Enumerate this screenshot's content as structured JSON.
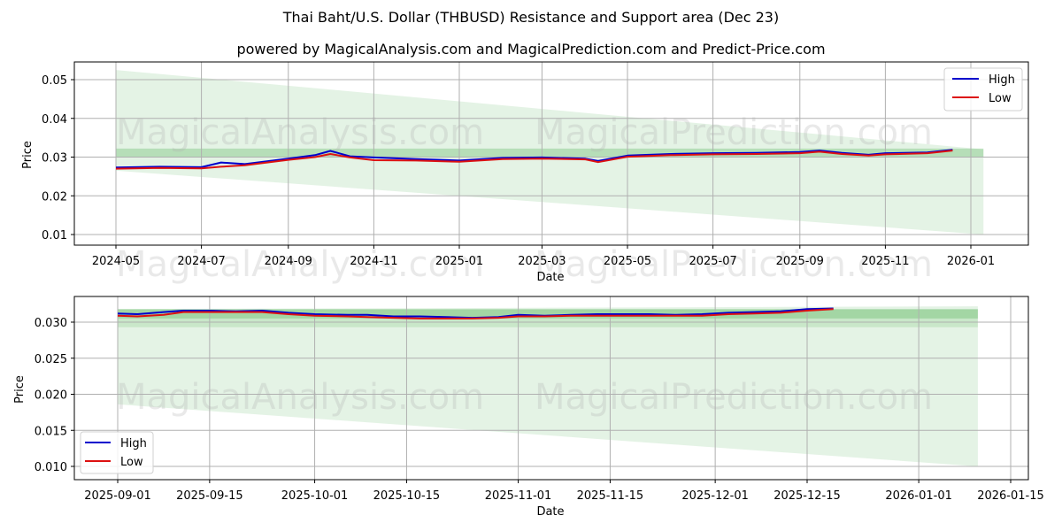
{
  "title": "Thai Baht/U.S. Dollar (THBUSD) Resistance and Support area (Dec 23)",
  "subtitle": "powered by MagicalAnalysis.com and MagicalPrediction.com and Predict-Price.com",
  "watermarks": [
    "MagicalAnalysis.com",
    "MagicalPrediction.com"
  ],
  "colors": {
    "high": "#0000cc",
    "low": "#dd1111",
    "band_light": "#c8e6c9",
    "band_dark": "#8fc98f",
    "grid": "#b0b0b0"
  },
  "legend": {
    "high": "High",
    "low": "Low"
  },
  "chart_data": [
    {
      "type": "line",
      "title": "Thai Baht/U.S. Dollar (THBUSD) Resistance and Support area (Dec 23)",
      "xlabel": "Date",
      "ylabel": "Price",
      "x_ticks": [
        "2024-05",
        "2024-07",
        "2024-09",
        "2024-11",
        "2025-01",
        "2025-03",
        "2025-05",
        "2025-07",
        "2025-09",
        "2025-11",
        "2026-01"
      ],
      "y_ticks": [
        "0.01",
        "0.02",
        "0.03",
        "0.04",
        "0.05"
      ],
      "ylim": [
        0.0075,
        0.0545
      ],
      "grid": true,
      "legend_position": "upper right",
      "x": [
        "2024-05-01",
        "2024-06-01",
        "2024-07-01",
        "2024-07-15",
        "2024-08-01",
        "2024-09-01",
        "2024-09-20",
        "2024-10-01",
        "2024-10-15",
        "2024-11-01",
        "2024-12-01",
        "2025-01-01",
        "2025-02-01",
        "2025-03-01",
        "2025-04-01",
        "2025-04-10",
        "2025-05-01",
        "2025-06-01",
        "2025-07-01",
        "2025-08-01",
        "2025-09-01",
        "2025-09-15",
        "2025-10-01",
        "2025-10-20",
        "2025-11-01",
        "2025-12-01",
        "2025-12-19"
      ],
      "series": [
        {
          "name": "High",
          "values": [
            0.0273,
            0.0275,
            0.0274,
            0.0286,
            0.0282,
            0.0296,
            0.0305,
            0.0316,
            0.0302,
            0.0299,
            0.0295,
            0.0291,
            0.0298,
            0.0299,
            0.0296,
            0.029,
            0.0304,
            0.0308,
            0.031,
            0.0311,
            0.0313,
            0.0317,
            0.0311,
            0.0306,
            0.031,
            0.0312,
            0.0319
          ]
        },
        {
          "name": "Low",
          "values": [
            0.027,
            0.0272,
            0.0271,
            0.0275,
            0.0279,
            0.0293,
            0.03,
            0.0308,
            0.0299,
            0.0292,
            0.0291,
            0.0288,
            0.0295,
            0.0296,
            0.0294,
            0.0287,
            0.0301,
            0.0305,
            0.0307,
            0.0308,
            0.031,
            0.0314,
            0.0308,
            0.0304,
            0.0307,
            0.031,
            0.0317
          ]
        }
      ],
      "bands": [
        {
          "name": "wide support/resistance area",
          "start": "2024-05-01",
          "end": "2026-01-10",
          "upper_start": 0.0525,
          "upper_end": 0.032,
          "lower_start": 0.0265,
          "lower_end": 0.01
        },
        {
          "name": "narrow area",
          "start": "2024-05-01",
          "end": "2026-01-10",
          "upper": 0.0322,
          "lower": 0.03
        }
      ]
    },
    {
      "type": "line",
      "xlabel": "Date",
      "ylabel": "Price",
      "x_ticks": [
        "2025-09-01",
        "2025-09-15",
        "2025-10-01",
        "2025-10-15",
        "2025-11-01",
        "2025-11-15",
        "2025-12-01",
        "2025-12-15",
        "2026-01-01",
        "2026-01-15"
      ],
      "y_ticks": [
        "0.010",
        "0.015",
        "0.020",
        "0.025",
        "0.030"
      ],
      "ylim": [
        0.0082,
        0.0335
      ],
      "grid": true,
      "legend_position": "lower left",
      "x": [
        "2025-09-01",
        "2025-09-04",
        "2025-09-08",
        "2025-09-11",
        "2025-09-15",
        "2025-09-19",
        "2025-09-23",
        "2025-09-27",
        "2025-10-01",
        "2025-10-06",
        "2025-10-09",
        "2025-10-13",
        "2025-10-17",
        "2025-10-21",
        "2025-10-25",
        "2025-10-29",
        "2025-11-01",
        "2025-11-05",
        "2025-11-09",
        "2025-11-13",
        "2025-11-17",
        "2025-11-21",
        "2025-11-25",
        "2025-11-29",
        "2025-12-03",
        "2025-12-07",
        "2025-12-11",
        "2025-12-15",
        "2025-12-19"
      ],
      "series": [
        {
          "name": "High",
          "values": [
            0.0312,
            0.0311,
            0.0314,
            0.0316,
            0.0316,
            0.0315,
            0.0316,
            0.0313,
            0.0311,
            0.031,
            0.031,
            0.0308,
            0.0308,
            0.0307,
            0.0306,
            0.0307,
            0.031,
            0.0309,
            0.031,
            0.0311,
            0.0311,
            0.0311,
            0.031,
            0.0311,
            0.0313,
            0.0314,
            0.0315,
            0.0318,
            0.0319
          ]
        },
        {
          "name": "Low",
          "values": [
            0.0309,
            0.0308,
            0.031,
            0.0314,
            0.0314,
            0.0314,
            0.0314,
            0.0311,
            0.0309,
            0.0308,
            0.0307,
            0.0306,
            0.0305,
            0.0305,
            0.0305,
            0.0306,
            0.0308,
            0.0308,
            0.0309,
            0.0309,
            0.0309,
            0.0309,
            0.0309,
            0.0309,
            0.0311,
            0.0312,
            0.0313,
            0.0316,
            0.0318
          ]
        }
      ],
      "bands": [
        {
          "name": "wide support/resistance area",
          "start": "2025-09-01",
          "end": "2026-01-10",
          "upper_start": 0.0318,
          "upper_end": 0.0322,
          "lower_start": 0.0186,
          "lower_end": 0.01
        },
        {
          "name": "narrow area (dark)",
          "start": "2025-09-01",
          "end": "2026-01-10",
          "upper": 0.0318,
          "lower": 0.0305
        },
        {
          "name": "narrow area (mid)",
          "start": "2025-09-01",
          "end": "2026-01-10",
          "upper": 0.0318,
          "lower": 0.0293
        }
      ]
    }
  ]
}
